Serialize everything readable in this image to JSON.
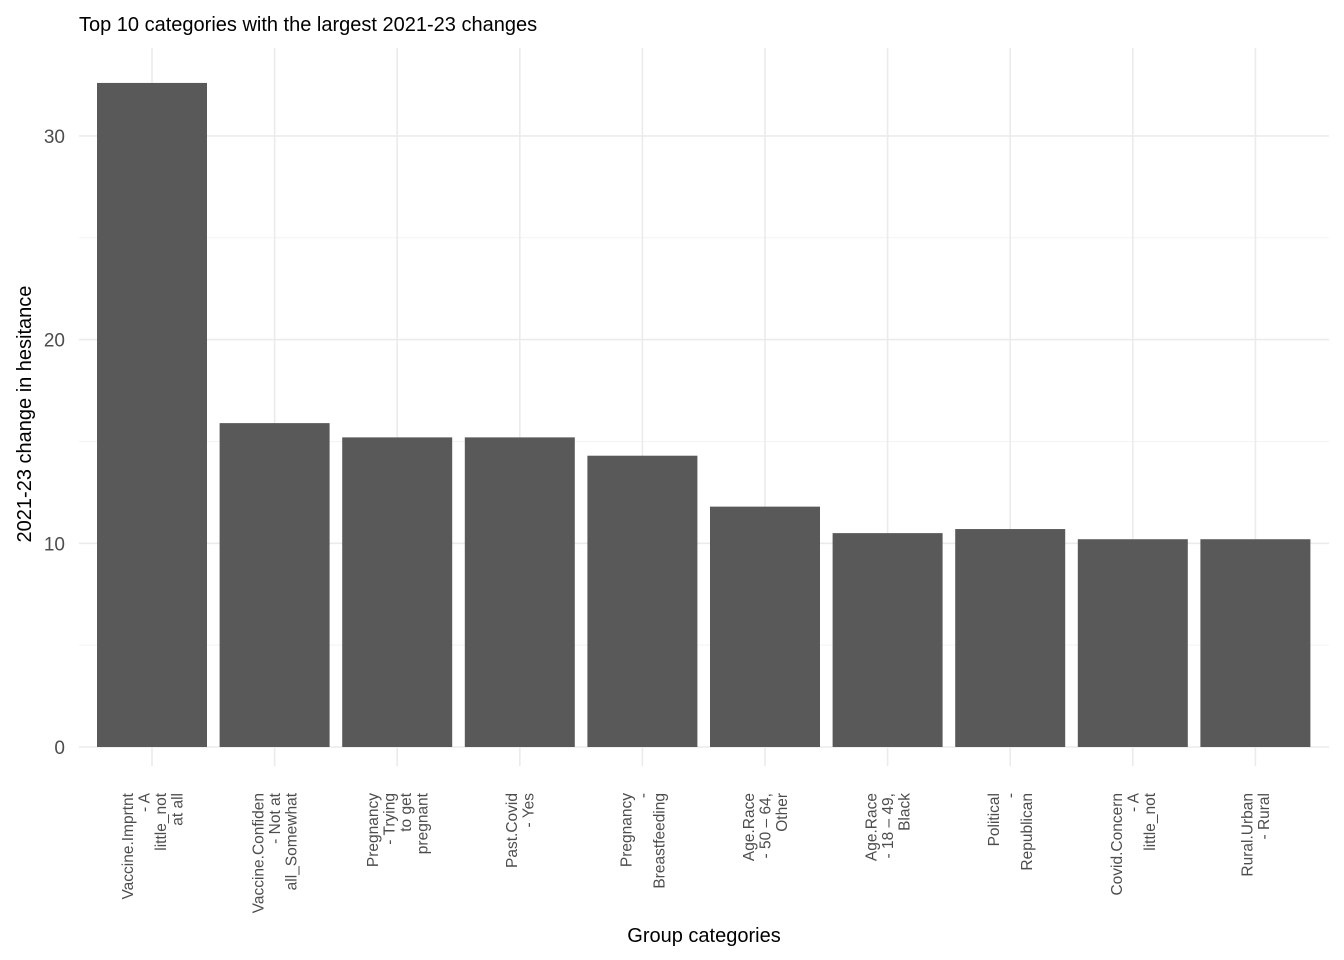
{
  "chart_data": {
    "type": "bar",
    "title": "Top 10 categories with the largest 2021-23 changes",
    "xlabel": "Group categories",
    "ylabel": "2021-23 change in hesitance",
    "ylim": [
      0,
      33
    ],
    "y_major_ticks": [
      0,
      10,
      20,
      30
    ],
    "y_minor_ticks": [
      5,
      15,
      25
    ],
    "grid": true,
    "legend": "none",
    "bar_color": "#595959",
    "categories": [
      [
        "Vaccine.Imprtnt",
        "- A",
        "little_not",
        "at all"
      ],
      [
        "Vaccine.Confiden",
        "- Not at",
        "all_Somewhat"
      ],
      [
        "Pregnancy",
        "- Trying",
        "to get",
        "pregnant"
      ],
      [
        "Past.Covid",
        "- Yes"
      ],
      [
        "Pregnancy",
        "-",
        "Breastfeeding"
      ],
      [
        "Age.Race",
        "- 50 – 64,",
        "Other"
      ],
      [
        "Age.Race",
        "- 18 – 49,",
        "Black"
      ],
      [
        "Political",
        "-",
        "Republican"
      ],
      [
        "Covid.Concern",
        "- A",
        "little_not"
      ],
      [
        "Rural.Urban",
        "- Rural"
      ]
    ],
    "values": [
      32.6,
      15.9,
      15.2,
      15.2,
      14.3,
      11.8,
      10.5,
      10.7,
      10.2,
      10.2
    ]
  }
}
